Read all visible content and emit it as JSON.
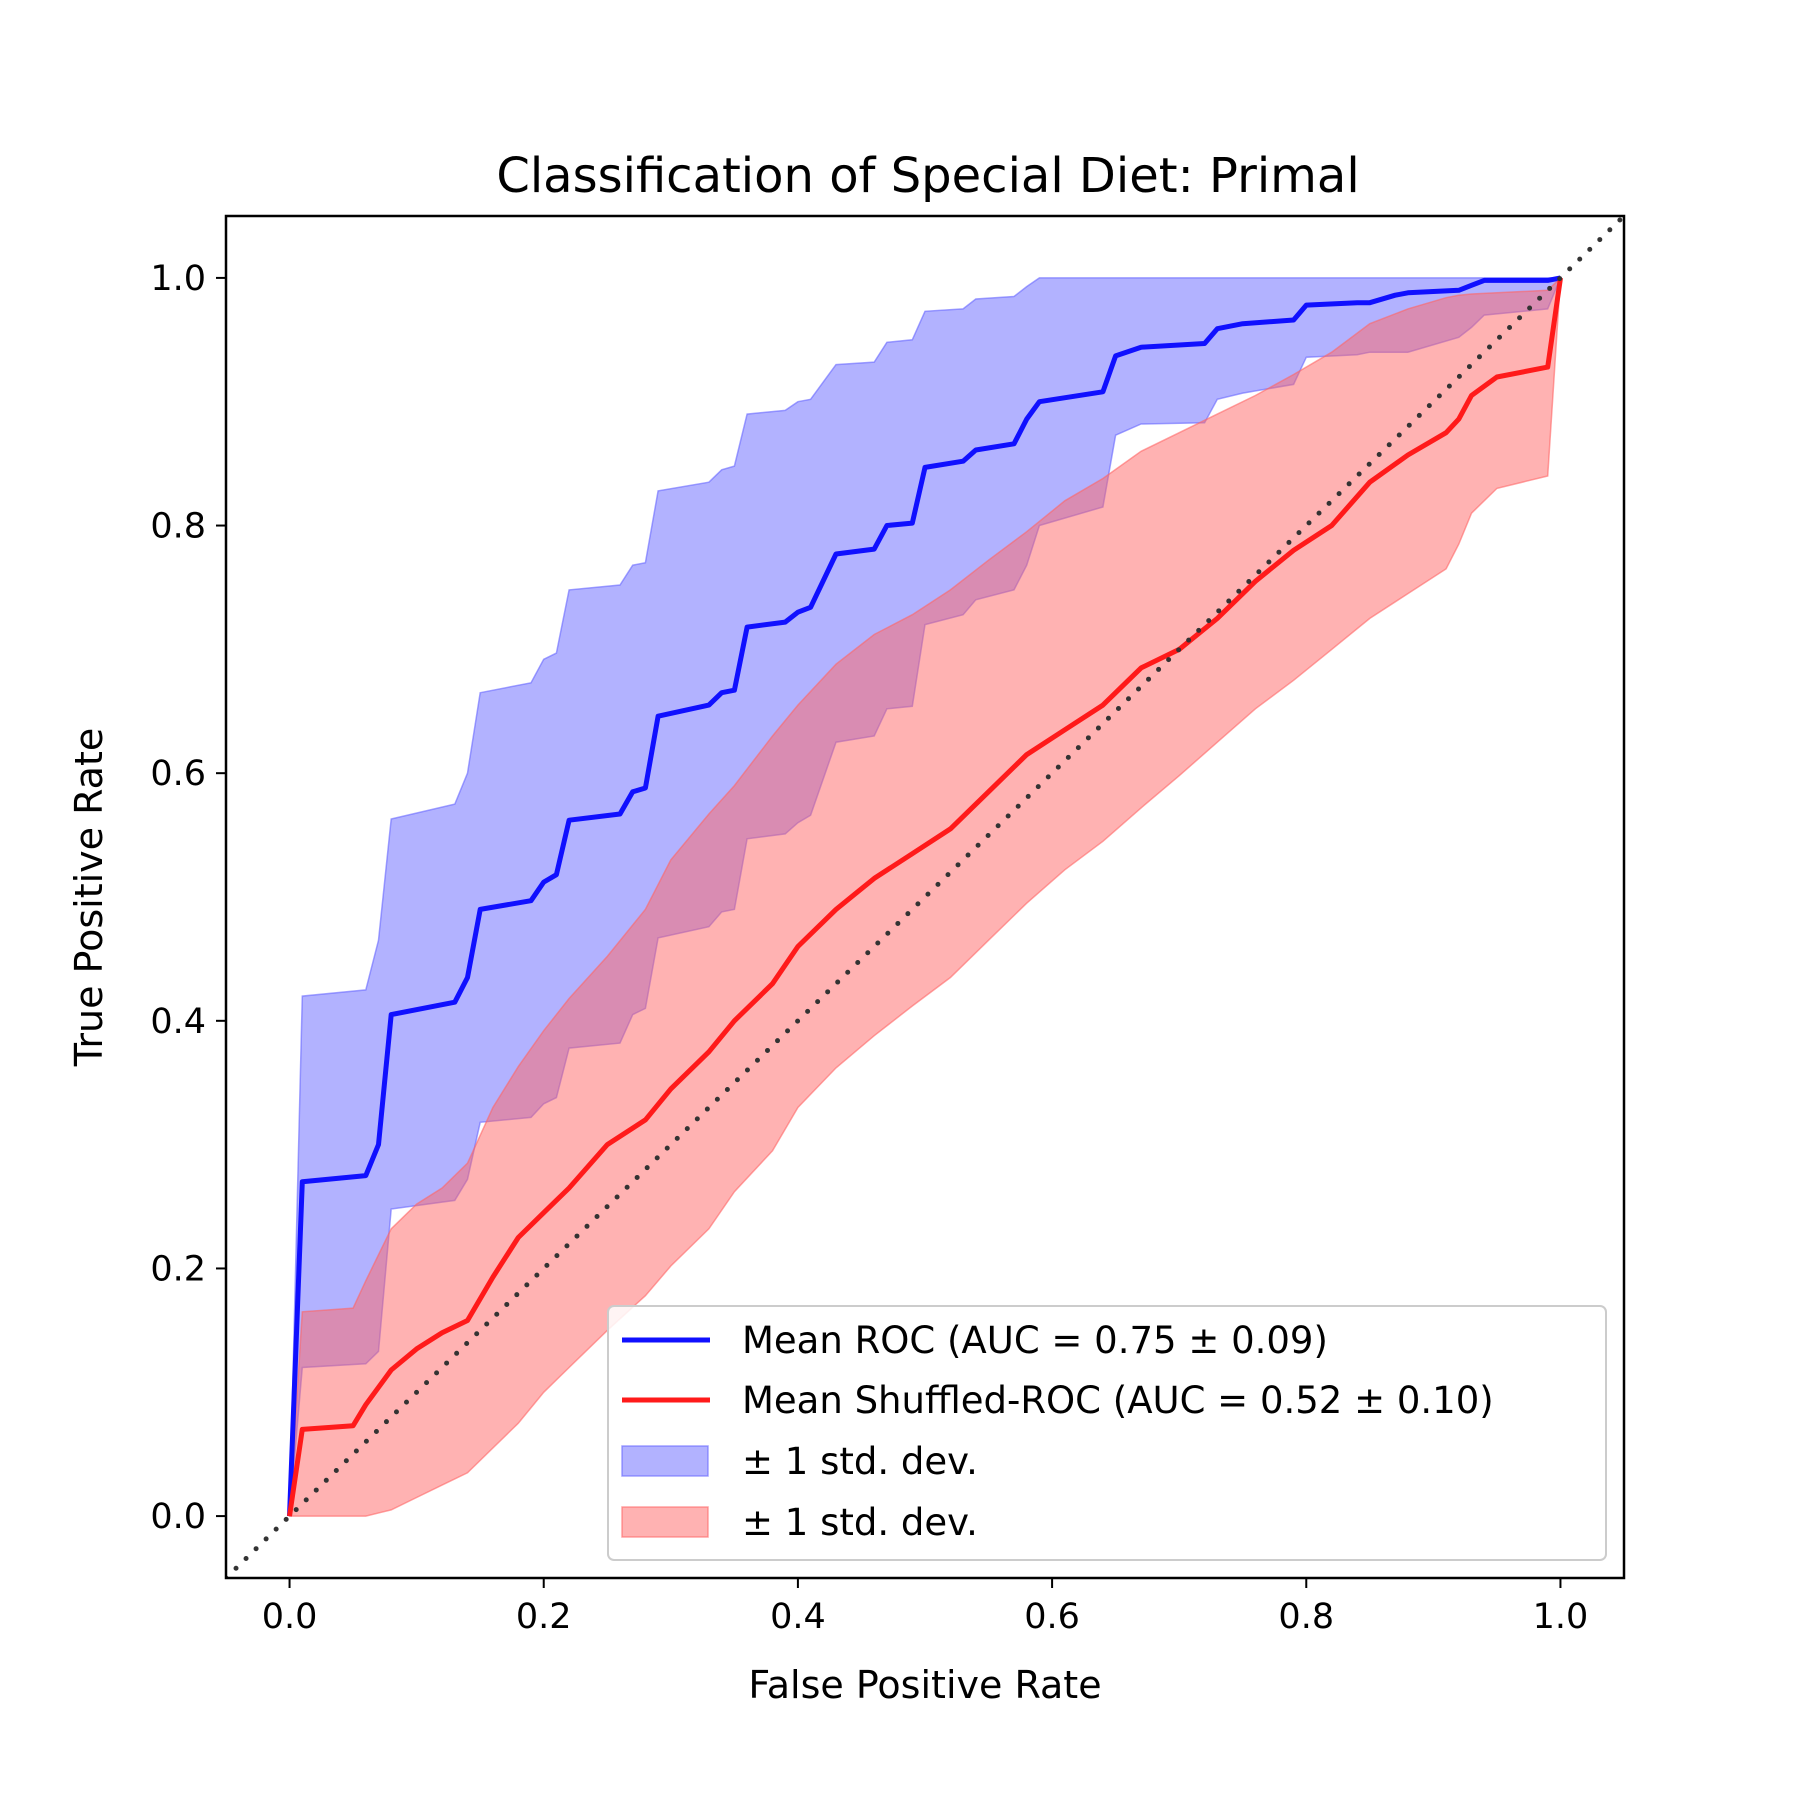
{
  "chart_data": {
    "type": "line",
    "title": "Classification of Special Diet: Primal",
    "xlabel": "False Positive Rate",
    "ylabel": "True Positive Rate",
    "xlim": [
      -0.05,
      1.05
    ],
    "ylim": [
      -0.05,
      1.05
    ],
    "xticks": [
      "0.0",
      "0.2",
      "0.4",
      "0.6",
      "0.8",
      "1.0"
    ],
    "yticks": [
      "0.0",
      "0.2",
      "0.4",
      "0.6",
      "0.8",
      "1.0"
    ],
    "grid": false,
    "legend_placement": "lower-right",
    "diagonal": {
      "x": [
        0,
        1
      ],
      "y": [
        0,
        1
      ],
      "style": "dotted",
      "color": "#333333"
    },
    "series": [
      {
        "name": "Mean ROC (AUC = 0.75 ± 0.09)",
        "color": "#1010ff",
        "x": [
          0,
          0.01,
          0.06,
          0.07,
          0.08,
          0.13,
          0.14,
          0.15,
          0.19,
          0.2,
          0.21,
          0.22,
          0.26,
          0.27,
          0.28,
          0.29,
          0.33,
          0.34,
          0.35,
          0.36,
          0.39,
          0.4,
          0.41,
          0.43,
          0.46,
          0.47,
          0.49,
          0.5,
          0.53,
          0.54,
          0.57,
          0.58,
          0.59,
          0.64,
          0.65,
          0.67,
          0.72,
          0.73,
          0.75,
          0.79,
          0.8,
          0.84,
          0.85,
          0.87,
          0.88,
          0.92,
          0.93,
          0.94,
          0.99,
          1.0
        ],
        "y": [
          0,
          0.27,
          0.275,
          0.3,
          0.405,
          0.415,
          0.435,
          0.49,
          0.497,
          0.512,
          0.518,
          0.562,
          0.567,
          0.585,
          0.588,
          0.646,
          0.655,
          0.665,
          0.667,
          0.718,
          0.722,
          0.73,
          0.734,
          0.777,
          0.781,
          0.8,
          0.802,
          0.847,
          0.852,
          0.861,
          0.866,
          0.886,
          0.9,
          0.908,
          0.937,
          0.944,
          0.947,
          0.959,
          0.963,
          0.966,
          0.978,
          0.98,
          0.98,
          0.986,
          0.988,
          0.99,
          0.994,
          0.998,
          0.998,
          1.0
        ]
      },
      {
        "name": "Mean Shuffled-ROC (AUC = 0.52 ± 0.10)",
        "color": "#ff1a1a",
        "x": [
          0,
          0.01,
          0.05,
          0.06,
          0.08,
          0.1,
          0.12,
          0.14,
          0.16,
          0.18,
          0.2,
          0.22,
          0.25,
          0.28,
          0.3,
          0.33,
          0.35,
          0.38,
          0.4,
          0.43,
          0.46,
          0.49,
          0.52,
          0.55,
          0.58,
          0.61,
          0.64,
          0.67,
          0.7,
          0.73,
          0.76,
          0.79,
          0.82,
          0.85,
          0.88,
          0.91,
          0.92,
          0.93,
          0.95,
          0.99,
          1.0
        ],
        "y": [
          0,
          0.07,
          0.073,
          0.09,
          0.118,
          0.135,
          0.148,
          0.158,
          0.193,
          0.225,
          0.245,
          0.265,
          0.3,
          0.32,
          0.345,
          0.375,
          0.4,
          0.43,
          0.46,
          0.49,
          0.515,
          0.535,
          0.555,
          0.585,
          0.615,
          0.635,
          0.655,
          0.685,
          0.7,
          0.725,
          0.755,
          0.78,
          0.8,
          0.835,
          0.857,
          0.875,
          0.886,
          0.905,
          0.92,
          0.928,
          1.0
        ]
      }
    ],
    "bands": [
      {
        "name": "± 1 std. dev.",
        "color": "#6666ff",
        "x": [
          0,
          0.01,
          0.06,
          0.07,
          0.08,
          0.13,
          0.14,
          0.15,
          0.19,
          0.2,
          0.21,
          0.22,
          0.26,
          0.27,
          0.28,
          0.29,
          0.33,
          0.34,
          0.35,
          0.36,
          0.39,
          0.4,
          0.41,
          0.43,
          0.46,
          0.47,
          0.49,
          0.5,
          0.53,
          0.54,
          0.57,
          0.58,
          0.59,
          0.64,
          0.65,
          0.67,
          0.72,
          0.73,
          0.75,
          0.79,
          0.8,
          0.84,
          0.85,
          0.87,
          0.88,
          0.92,
          0.93,
          0.94,
          0.99,
          1.0
        ],
        "upper": [
          0,
          0.42,
          0.425,
          0.465,
          0.563,
          0.575,
          0.6,
          0.665,
          0.673,
          0.692,
          0.697,
          0.748,
          0.752,
          0.768,
          0.77,
          0.828,
          0.835,
          0.845,
          0.848,
          0.89,
          0.893,
          0.9,
          0.902,
          0.93,
          0.932,
          0.948,
          0.95,
          0.973,
          0.975,
          0.983,
          0.985,
          0.993,
          1.0,
          1.0,
          1.0,
          1.0,
          1.0,
          1.0,
          1.0,
          1.0,
          1.0,
          1.0,
          1.0,
          1.0,
          1.0,
          1.0,
          1.0,
          1.0,
          1.0,
          1.0
        ],
        "lower": [
          0,
          0.12,
          0.123,
          0.133,
          0.248,
          0.255,
          0.272,
          0.318,
          0.322,
          0.333,
          0.338,
          0.378,
          0.382,
          0.405,
          0.41,
          0.467,
          0.476,
          0.488,
          0.49,
          0.547,
          0.551,
          0.56,
          0.566,
          0.625,
          0.63,
          0.652,
          0.654,
          0.72,
          0.728,
          0.74,
          0.748,
          0.768,
          0.8,
          0.815,
          0.873,
          0.882,
          0.883,
          0.902,
          0.907,
          0.914,
          0.936,
          0.938,
          0.94,
          0.94,
          0.94,
          0.952,
          0.96,
          0.97,
          0.975,
          1.0
        ]
      },
      {
        "name": "± 1 std. dev.",
        "color": "#ff6666",
        "x": [
          0,
          0.01,
          0.05,
          0.06,
          0.08,
          0.1,
          0.12,
          0.14,
          0.16,
          0.18,
          0.2,
          0.22,
          0.25,
          0.28,
          0.3,
          0.33,
          0.35,
          0.38,
          0.4,
          0.43,
          0.46,
          0.49,
          0.52,
          0.55,
          0.58,
          0.61,
          0.64,
          0.67,
          0.7,
          0.73,
          0.76,
          0.79,
          0.82,
          0.85,
          0.88,
          0.91,
          0.92,
          0.93,
          0.95,
          0.99,
          1.0
        ],
        "upper": [
          0,
          0.165,
          0.168,
          0.19,
          0.232,
          0.252,
          0.265,
          0.285,
          0.33,
          0.363,
          0.392,
          0.418,
          0.452,
          0.49,
          0.53,
          0.567,
          0.59,
          0.63,
          0.655,
          0.688,
          0.712,
          0.728,
          0.748,
          0.772,
          0.795,
          0.82,
          0.838,
          0.86,
          0.875,
          0.89,
          0.905,
          0.922,
          0.94,
          0.963,
          0.975,
          0.984,
          0.986,
          0.987,
          0.988,
          0.99,
          1.0
        ],
        "lower": [
          0,
          0,
          0,
          0,
          0.005,
          0.015,
          0.025,
          0.035,
          0.055,
          0.075,
          0.1,
          0.12,
          0.15,
          0.178,
          0.202,
          0.232,
          0.262,
          0.295,
          0.33,
          0.362,
          0.388,
          0.412,
          0.435,
          0.465,
          0.495,
          0.522,
          0.545,
          0.572,
          0.598,
          0.625,
          0.652,
          0.675,
          0.7,
          0.725,
          0.745,
          0.765,
          0.785,
          0.81,
          0.83,
          0.84,
          1.0
        ]
      }
    ]
  }
}
